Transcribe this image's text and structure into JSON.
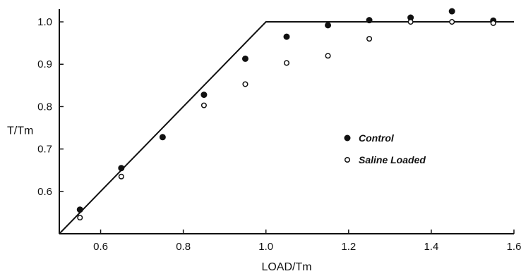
{
  "chart_data": {
    "type": "scatter",
    "title": "",
    "xlabel": "LOAD/Tm",
    "ylabel": "T/Tm",
    "xlim": [
      0.5,
      1.6
    ],
    "ylim": [
      0.5,
      1.03
    ],
    "x_ticks": [
      0.6,
      0.8,
      1.0,
      1.2,
      1.4,
      1.6
    ],
    "x_tick_labels": [
      "0.6",
      "0.8",
      "1.0",
      "1.2",
      "1.4",
      "1.6"
    ],
    "y_ticks": [
      0.6,
      0.7,
      0.8,
      0.9,
      1.0
    ],
    "y_tick_labels": [
      "0.6",
      "0.7",
      "0.8",
      "0.9",
      "1.0"
    ],
    "grid": false,
    "legend_position": "right",
    "series": [
      {
        "name": "Control",
        "marker": "filled-circle",
        "color": "#111111",
        "x": [
          0.55,
          0.65,
          0.75,
          0.85,
          0.95,
          1.05,
          1.15,
          1.25,
          1.35,
          1.45,
          1.55
        ],
        "y": [
          0.557,
          0.655,
          0.728,
          0.828,
          0.913,
          0.965,
          0.992,
          1.004,
          1.01,
          1.025,
          1.003
        ]
      },
      {
        "name": "Saline Loaded",
        "marker": "open-circle",
        "color": "#111111",
        "x": [
          0.55,
          0.65,
          0.85,
          0.95,
          1.05,
          1.15,
          1.25,
          1.35,
          1.45,
          1.55
        ],
        "y": [
          0.538,
          0.635,
          0.803,
          0.853,
          0.903,
          0.92,
          0.96,
          1.0,
          1.0,
          0.997
        ]
      }
    ],
    "reference_line": {
      "x": [
        0.5,
        1.0,
        1.6
      ],
      "y": [
        0.5,
        1.0,
        1.0
      ]
    }
  }
}
